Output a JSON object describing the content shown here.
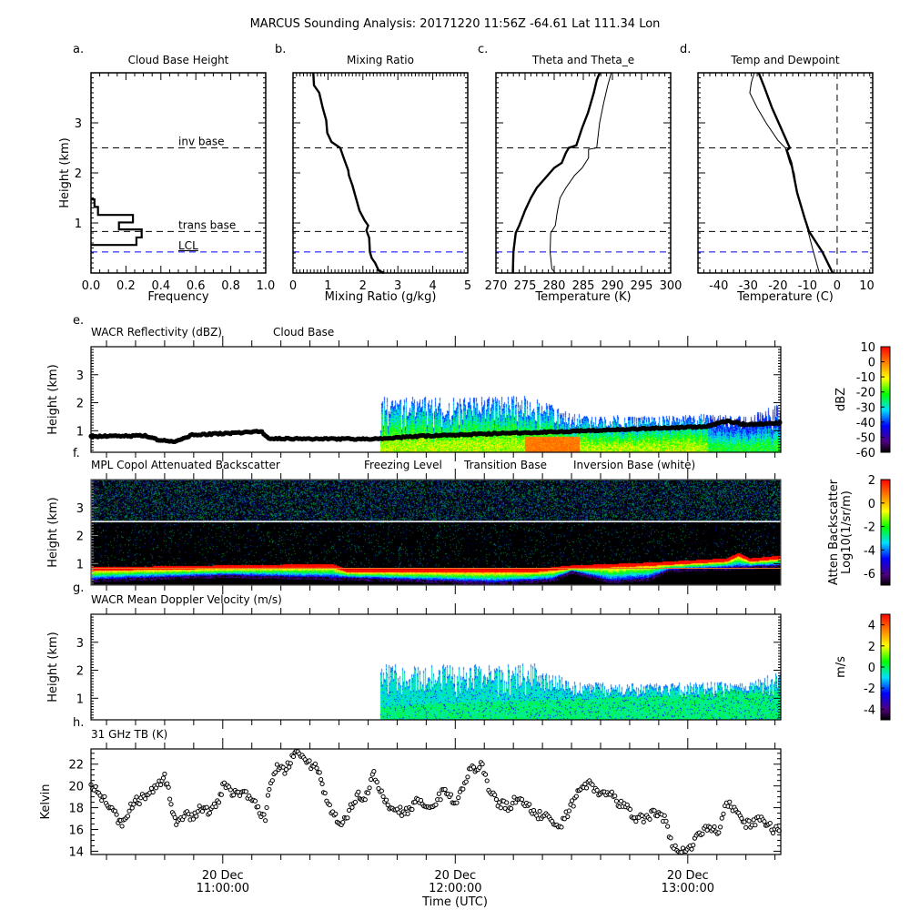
{
  "title": "MARCUS Sounding Analysis: 20171220 11:56Z   -64.61 Lat  111.34 Lon",
  "levels": {
    "inv_base_km": 2.5,
    "trans_base_km": 0.83,
    "lcl_km": 0.42,
    "inv_label": "inv base",
    "trans_label": "trans base",
    "lcl_label": "LCL",
    "lcl_color": "#0000ff"
  },
  "profile_height": {
    "label": "Height (km)",
    "ylim": [
      0,
      4
    ],
    "ticks": [
      1,
      2,
      3
    ]
  },
  "time_axis": {
    "units": "minutes since 10:00 UTC",
    "xlim": [
      26,
      204
    ],
    "ticks": [
      {
        "t": 60,
        "date": "20 Dec",
        "time": "11:00:00"
      },
      {
        "t": 120,
        "date": "20 Dec",
        "time": "12:00:00"
      },
      {
        "t": 180,
        "date": "20 Dec",
        "time": "13:00:00"
      }
    ],
    "label": "Time (UTC)"
  },
  "chart_data": [
    {
      "id": "a",
      "letter": "a.",
      "type": "line",
      "title": "Cloud Base Height",
      "xlabel": "Frequency",
      "xlim": [
        0,
        1
      ],
      "xticks": [
        0,
        0.2,
        0.4,
        0.6,
        0.8,
        1.0
      ],
      "xticklabels": [
        "0.0",
        "0.2",
        "0.4",
        "0.6",
        "0.8",
        "1.0"
      ],
      "xminor": 0.05,
      "histogram": {
        "bin_edges_km": [
          0.56,
          0.71,
          0.87,
          1.01,
          1.16,
          1.32,
          1.47
        ],
        "frequency": [
          0.26,
          0.29,
          0.16,
          0.24,
          0.04,
          0.02
        ]
      }
    },
    {
      "id": "b",
      "letter": "b.",
      "type": "line",
      "title": "Mixing Ratio",
      "xlabel": "Mixing Ratio (g/kg)",
      "xlim": [
        0,
        5
      ],
      "xticks": [
        0,
        1,
        2,
        3,
        4,
        5
      ],
      "xticklabels": [
        "0",
        "1",
        "2",
        "3",
        "4",
        "5"
      ],
      "xminor": 0.1,
      "series": [
        {
          "name": "mixing ratio",
          "weight": "thick",
          "points": [
            [
              2.6,
              0
            ],
            [
              2.45,
              0.05
            ],
            [
              2.35,
              0.2
            ],
            [
              2.25,
              0.3
            ],
            [
              2.2,
              0.42
            ],
            [
              2.18,
              0.7
            ],
            [
              2.1,
              0.85
            ],
            [
              2.15,
              0.95
            ],
            [
              2.05,
              1.05
            ],
            [
              1.9,
              1.25
            ],
            [
              1.8,
              1.5
            ],
            [
              1.7,
              1.75
            ],
            [
              1.6,
              1.95
            ],
            [
              1.58,
              2.05
            ],
            [
              1.45,
              2.3
            ],
            [
              1.35,
              2.5
            ],
            [
              1.1,
              2.62
            ],
            [
              0.98,
              2.8
            ],
            [
              0.95,
              3.05
            ],
            [
              0.85,
              3.3
            ],
            [
              0.75,
              3.6
            ],
            [
              0.6,
              3.75
            ],
            [
              0.58,
              4.0
            ]
          ]
        }
      ]
    },
    {
      "id": "c",
      "letter": "c.",
      "type": "line",
      "title": "Theta and Theta_e",
      "xlabel": "Temperature (K)",
      "xlim": [
        270,
        300
      ],
      "xticks": [
        270,
        275,
        280,
        285,
        290,
        295,
        300
      ],
      "xticklabels": [
        "270",
        "275",
        "280",
        "285",
        "290",
        "295",
        "300"
      ],
      "xminor": 1,
      "series": [
        {
          "name": "theta",
          "weight": "thick",
          "points": [
            [
              272.9,
              0
            ],
            [
              273.0,
              0.42
            ],
            [
              273.4,
              0.8
            ],
            [
              274,
              0.95
            ],
            [
              275,
              1.25
            ],
            [
              276,
              1.5
            ],
            [
              277,
              1.7
            ],
            [
              278.5,
              1.9
            ],
            [
              280,
              2.1
            ],
            [
              281.3,
              2.2
            ],
            [
              282,
              2.4
            ],
            [
              282.5,
              2.5
            ],
            [
              283.8,
              2.55
            ],
            [
              284.8,
              2.9
            ],
            [
              285.8,
              3.2
            ],
            [
              286.8,
              3.6
            ],
            [
              287.3,
              3.85
            ],
            [
              287.8,
              4.0
            ]
          ]
        },
        {
          "name": "theta_e",
          "weight": "thin",
          "points": [
            [
              280.2,
              0
            ],
            [
              279.6,
              0.08
            ],
            [
              279.3,
              0.42
            ],
            [
              279.4,
              0.8
            ],
            [
              280.2,
              0.95
            ],
            [
              280.5,
              1.2
            ],
            [
              281,
              1.5
            ],
            [
              282,
              1.7
            ],
            [
              283.5,
              1.95
            ],
            [
              284.8,
              2.1
            ],
            [
              285.9,
              2.3
            ],
            [
              285.9,
              2.47
            ],
            [
              287.3,
              2.5
            ],
            [
              287.8,
              3.0
            ],
            [
              288.5,
              3.4
            ],
            [
              289.2,
              3.75
            ],
            [
              289.8,
              4.0
            ]
          ]
        }
      ]
    },
    {
      "id": "d",
      "letter": "d.",
      "type": "line",
      "title": "Temp and Dewpoint",
      "xlabel": "Temperature (C)",
      "xlim": [
        -47,
        12
      ],
      "xticks": [
        -40,
        -30,
        -20,
        -10,
        0,
        10
      ],
      "xticklabels": [
        "-40",
        "-30",
        "-20",
        "-10",
        "0",
        "10"
      ],
      "xminor": 2,
      "zero_line": 0,
      "series": [
        {
          "name": "temperature",
          "weight": "thick",
          "points": [
            [
              -1.5,
              0
            ],
            [
              -5,
              0.42
            ],
            [
              -9.5,
              0.83
            ],
            [
              -11,
              1.1
            ],
            [
              -13.5,
              1.6
            ],
            [
              -14.5,
              1.9
            ],
            [
              -15.5,
              2.2
            ],
            [
              -17,
              2.45
            ],
            [
              -16,
              2.5
            ],
            [
              -19,
              2.9
            ],
            [
              -22,
              3.3
            ],
            [
              -24.5,
              3.7
            ],
            [
              -26.5,
              4.0
            ]
          ]
        },
        {
          "name": "dewpoint",
          "weight": "thin",
          "points": [
            [
              -6,
              0
            ],
            [
              -8,
              0.42
            ],
            [
              -9.8,
              0.83
            ],
            [
              -11,
              1.1
            ],
            [
              -13.5,
              1.6
            ],
            [
              -14.5,
              2.0
            ],
            [
              -16,
              2.2
            ],
            [
              -17.5,
              2.5
            ],
            [
              -20,
              2.65
            ],
            [
              -24,
              3.0
            ],
            [
              -27,
              3.3
            ],
            [
              -29.5,
              3.6
            ],
            [
              -29,
              3.8
            ],
            [
              -28,
              4.0
            ]
          ]
        }
      ]
    },
    {
      "id": "e",
      "letter": "e.",
      "type": "heatmap",
      "title": "WACR Reflectivity (dBZ)",
      "subtitle": "Cloud Base",
      "ylabel": "Height (km)",
      "ylim": [
        0.23,
        4.0
      ],
      "yticks": [
        1,
        2,
        3
      ],
      "colorbar": {
        "label": "dBZ",
        "range": [
          -60,
          10
        ],
        "ticks": [
          10,
          0,
          -10,
          -20,
          -30,
          -40,
          -50,
          -60
        ]
      },
      "echo_start_min": 100.5,
      "echo_top_km": [
        [
          100.5,
          2.2
        ],
        [
          140,
          2.25
        ],
        [
          150,
          1.6
        ],
        [
          170,
          1.5
        ],
        [
          185,
          1.6
        ],
        [
          195,
          1.5
        ],
        [
          204,
          2.0
        ]
      ],
      "cloud_base_km": [
        [
          26,
          0.8
        ],
        [
          40,
          0.82
        ],
        [
          44,
          0.65
        ],
        [
          48,
          0.62
        ],
        [
          52,
          0.85
        ],
        [
          60,
          0.9
        ],
        [
          70,
          0.97
        ],
        [
          72,
          0.72
        ],
        [
          100,
          0.7
        ],
        [
          110,
          0.8
        ],
        [
          130,
          0.9
        ],
        [
          150,
          0.98
        ],
        [
          170,
          1.08
        ],
        [
          185,
          1.15
        ],
        [
          190,
          1.35
        ],
        [
          195,
          1.22
        ],
        [
          204,
          1.27
        ]
      ]
    },
    {
      "id": "f",
      "letter": "f.",
      "type": "heatmap",
      "title": "MPL Copol Attenuated Backscatter",
      "legend": [
        {
          "label": "Freezing Level",
          "color": "#7fc8f8"
        },
        {
          "label": "Transition Base",
          "color": "#f05a3c"
        },
        {
          "label": "Inversion Base (white)",
          "color": "#000000"
        }
      ],
      "ylabel": "Height (km)",
      "ylim": [
        0.23,
        4.0
      ],
      "yticks": [
        1,
        2,
        3
      ],
      "colorbar": {
        "label": "Atten Backscatter",
        "label2": "Log10(1/sr/m)",
        "range": [
          -7,
          2
        ],
        "ticks": [
          2,
          0,
          -2,
          -4,
          -6
        ]
      },
      "inversion_line_km": 2.5,
      "transition_line_km": 0.83,
      "transition_color": "#e8762a",
      "layer_top_km": [
        [
          26,
          0.88
        ],
        [
          60,
          0.95
        ],
        [
          88,
          1.0
        ],
        [
          92,
          0.82
        ],
        [
          140,
          0.82
        ],
        [
          150,
          0.95
        ],
        [
          170,
          1.05
        ],
        [
          190,
          1.2
        ],
        [
          193,
          1.4
        ],
        [
          196,
          1.2
        ],
        [
          204,
          1.3
        ]
      ],
      "layer_base_km": [
        [
          26,
          0.45
        ],
        [
          60,
          0.6
        ],
        [
          95,
          0.5
        ],
        [
          130,
          0.35
        ],
        [
          145,
          0.45
        ],
        [
          150,
          0.75
        ],
        [
          160,
          0.4
        ],
        [
          170,
          0.5
        ],
        [
          175,
          0.8
        ],
        [
          204,
          0.95
        ]
      ]
    },
    {
      "id": "g",
      "letter": "g.",
      "type": "heatmap",
      "title": "WACR Mean Doppler Velocity (m/s)",
      "ylabel": "Height (km)",
      "ylim": [
        0.23,
        4.0
      ],
      "yticks": [
        1,
        2,
        3
      ],
      "colorbar": {
        "label": "m/s",
        "range": [
          -5,
          5
        ],
        "ticks": [
          4,
          2,
          0,
          -2,
          -4
        ]
      },
      "echo_start_min": 100.5,
      "echo_top_km": [
        [
          100.5,
          2.2
        ],
        [
          140,
          2.25
        ],
        [
          150,
          1.6
        ],
        [
          170,
          1.5
        ],
        [
          185,
          1.6
        ],
        [
          195,
          1.5
        ],
        [
          204,
          2.0
        ]
      ]
    },
    {
      "id": "h",
      "letter": "h.",
      "type": "scatter",
      "title": "31 GHz TB (K)",
      "ylabel": "Kelvin",
      "ylim": [
        13.7,
        23.4
      ],
      "yticks": [
        14,
        16,
        18,
        20,
        22
      ],
      "x_units": "minutes since 10:00 UTC",
      "points": [
        [
          26,
          20
        ],
        [
          28,
          19.3
        ],
        [
          31,
          18.2
        ],
        [
          33,
          17
        ],
        [
          34,
          16.5
        ],
        [
          37,
          18.5
        ],
        [
          40,
          19
        ],
        [
          44,
          20.5
        ],
        [
          45,
          21
        ],
        [
          46,
          19.5
        ],
        [
          47,
          17.5
        ],
        [
          48,
          16.5
        ],
        [
          50,
          17.5
        ],
        [
          52,
          17
        ],
        [
          54,
          18
        ],
        [
          57,
          17.7
        ],
        [
          59,
          18.5
        ],
        [
          60,
          20
        ],
        [
          62,
          19.5
        ],
        [
          66,
          19.2
        ],
        [
          68,
          18.5
        ],
        [
          71,
          17
        ],
        [
          72,
          20
        ],
        [
          74,
          22
        ],
        [
          76,
          21.5
        ],
        [
          79,
          23
        ],
        [
          82,
          22
        ],
        [
          85,
          21.5
        ],
        [
          86,
          19.5
        ],
        [
          88,
          17.5
        ],
        [
          91,
          16.5
        ],
        [
          93,
          18
        ],
        [
          95,
          19.5
        ],
        [
          96,
          18.5
        ],
        [
          99,
          21
        ],
        [
          101,
          19.5
        ],
        [
          103,
          18
        ],
        [
          107,
          17.5
        ],
        [
          110,
          18.5
        ],
        [
          113,
          18
        ],
        [
          115,
          18.5
        ],
        [
          117,
          19.5
        ],
        [
          120,
          18.5
        ],
        [
          122,
          20
        ],
        [
          124,
          21.5
        ],
        [
          127,
          22
        ],
        [
          129,
          19.5
        ],
        [
          131,
          18.5
        ],
        [
          134,
          18
        ],
        [
          136,
          19
        ],
        [
          138,
          18.5
        ],
        [
          141,
          17.2
        ],
        [
          143,
          17.5
        ],
        [
          145,
          16.5
        ],
        [
          147,
          16.3
        ],
        [
          149,
          17.5
        ],
        [
          152,
          19.5
        ],
        [
          155,
          20.5
        ],
        [
          157,
          19
        ],
        [
          160,
          19.5
        ],
        [
          162,
          18.5
        ],
        [
          164,
          18
        ],
        [
          167,
          17
        ],
        [
          169,
          17
        ],
        [
          171,
          17.5
        ],
        [
          174,
          17
        ],
        [
          176,
          14.5
        ],
        [
          178,
          14
        ],
        [
          181,
          14.5
        ],
        [
          183,
          15.5
        ],
        [
          185,
          16
        ],
        [
          188,
          16
        ],
        [
          190,
          18.5
        ],
        [
          192,
          18
        ],
        [
          195,
          16.5
        ],
        [
          197,
          16.5
        ],
        [
          199,
          17
        ],
        [
          202,
          16
        ],
        [
          204,
          15.8
        ]
      ]
    }
  ]
}
